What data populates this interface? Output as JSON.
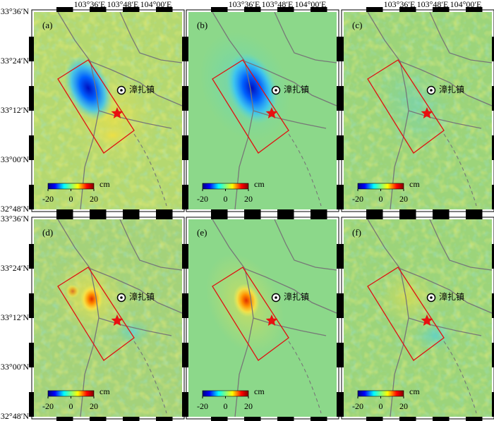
{
  "lon_labels": [
    "103°36′E",
    "103°48′E",
    "104°00′E"
  ],
  "lat_labels": [
    "33°36′N",
    "33°24′N",
    "33°12′N",
    "33°00′N",
    "32°48′N"
  ],
  "panels": [
    {
      "label": "(a)"
    },
    {
      "label": "(b)"
    },
    {
      "label": "(c)"
    },
    {
      "label": "(d)"
    },
    {
      "label": "(e)"
    },
    {
      "label": "(f)"
    }
  ],
  "town": "漳扎镇",
  "colorbar": {
    "ticks": [
      -20,
      0,
      20
    ],
    "unit": "cm"
  }
}
